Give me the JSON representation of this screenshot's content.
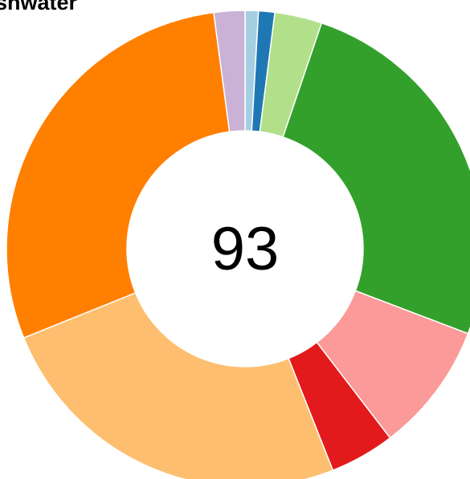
{
  "chart_data": {
    "type": "donut",
    "title": "Freshwater",
    "center_value": 93,
    "values": [
      0.9,
      1.1,
      3.2,
      25.6,
      8.8,
      4.4,
      24.9,
      29.0,
      2.1
    ],
    "colors": [
      "#a6cee3",
      "#1f78b4",
      "#b2df8a",
      "#33a02c",
      "#fb9a99",
      "#e31a1c",
      "#fdbf6f",
      "#ff7f00",
      "#cab2d6"
    ]
  }
}
